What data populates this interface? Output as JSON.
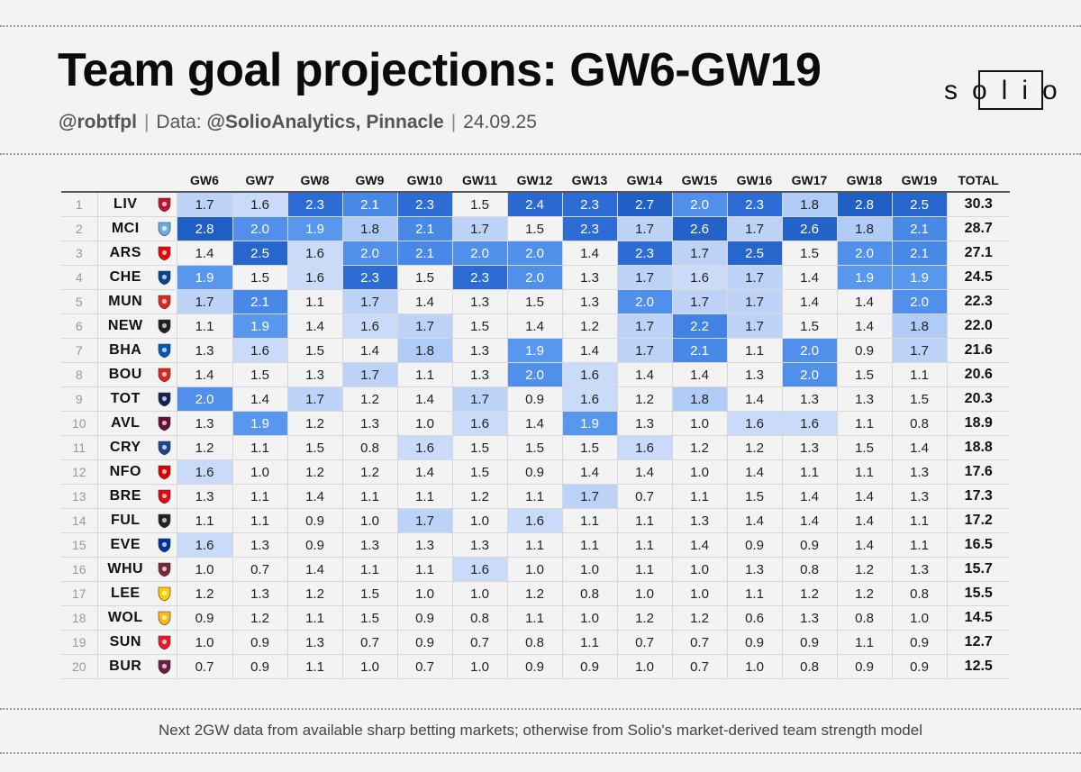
{
  "header": {
    "title": "Team goal projections: GW6-GW19",
    "author": "@robtfpl",
    "data_label": "Data:",
    "data_source": "@SolioAnalytics, Pinnacle",
    "date": "24.09.25",
    "logo_text": "solio"
  },
  "footnote": "Next 2GW data from available sharp betting markets; otherwise from Solio's market-derived team strength model",
  "colors": {
    "background": "#f3f3f3",
    "cell_base": "#f3f3f3",
    "scale_light": "#cfdff9",
    "scale_mid": "#5b9af0",
    "scale_dark": "#1f5ec4"
  },
  "chart_data": {
    "type": "table",
    "title": "Team goal projections: GW6-GW19",
    "columns": [
      "GW6",
      "GW7",
      "GW8",
      "GW9",
      "GW10",
      "GW11",
      "GW12",
      "GW13",
      "GW14",
      "GW15",
      "GW16",
      "GW17",
      "GW18",
      "GW19",
      "TOTAL"
    ],
    "rows": [
      {
        "rank": "1",
        "team": "LIV",
        "crest": "liverpool-crest-icon",
        "crest_color": "#c8102e",
        "values": [
          "1.7",
          "1.6",
          "2.3",
          "2.1",
          "2.3",
          "1.5",
          "2.4",
          "2.3",
          "2.7",
          "2.0",
          "2.3",
          "1.8",
          "2.8",
          "2.5"
        ],
        "total": "30.3"
      },
      {
        "rank": "2",
        "team": "MCI",
        "crest": "man-city-crest-icon",
        "crest_color": "#6cabdd",
        "values": [
          "2.8",
          "2.0",
          "1.9",
          "1.8",
          "2.1",
          "1.7",
          "1.5",
          "2.3",
          "1.7",
          "2.6",
          "1.7",
          "2.6",
          "1.8",
          "2.1"
        ],
        "total": "28.7"
      },
      {
        "rank": "3",
        "team": "ARS",
        "crest": "arsenal-crest-icon",
        "crest_color": "#ef0107",
        "values": [
          "1.4",
          "2.5",
          "1.6",
          "2.0",
          "2.1",
          "2.0",
          "2.0",
          "1.4",
          "2.3",
          "1.7",
          "2.5",
          "1.5",
          "2.0",
          "2.1"
        ],
        "total": "27.1"
      },
      {
        "rank": "4",
        "team": "CHE",
        "crest": "chelsea-crest-icon",
        "crest_color": "#034694",
        "values": [
          "1.9",
          "1.5",
          "1.6",
          "2.3",
          "1.5",
          "2.3",
          "2.0",
          "1.3",
          "1.7",
          "1.6",
          "1.7",
          "1.4",
          "1.9",
          "1.9"
        ],
        "total": "24.5"
      },
      {
        "rank": "5",
        "team": "MUN",
        "crest": "man-united-crest-icon",
        "crest_color": "#da291c",
        "values": [
          "1.7",
          "2.1",
          "1.1",
          "1.7",
          "1.4",
          "1.3",
          "1.5",
          "1.3",
          "2.0",
          "1.7",
          "1.7",
          "1.4",
          "1.4",
          "2.0"
        ],
        "total": "22.3"
      },
      {
        "rank": "6",
        "team": "NEW",
        "crest": "newcastle-crest-icon",
        "crest_color": "#241f20",
        "values": [
          "1.1",
          "1.9",
          "1.4",
          "1.6",
          "1.7",
          "1.5",
          "1.4",
          "1.2",
          "1.7",
          "2.2",
          "1.7",
          "1.5",
          "1.4",
          "1.8"
        ],
        "total": "22.0"
      },
      {
        "rank": "7",
        "team": "BHA",
        "crest": "brighton-crest-icon",
        "crest_color": "#0057b8",
        "values": [
          "1.3",
          "1.6",
          "1.5",
          "1.4",
          "1.8",
          "1.3",
          "1.9",
          "1.4",
          "1.7",
          "2.1",
          "1.1",
          "2.0",
          "0.9",
          "1.7"
        ],
        "total": "21.6"
      },
      {
        "rank": "8",
        "team": "BOU",
        "crest": "bournemouth-crest-icon",
        "crest_color": "#da291c",
        "values": [
          "1.4",
          "1.5",
          "1.3",
          "1.7",
          "1.1",
          "1.3",
          "2.0",
          "1.6",
          "1.4",
          "1.4",
          "1.3",
          "2.0",
          "1.5",
          "1.1"
        ],
        "total": "20.6"
      },
      {
        "rank": "9",
        "team": "TOT",
        "crest": "tottenham-crest-icon",
        "crest_color": "#132257",
        "values": [
          "2.0",
          "1.4",
          "1.7",
          "1.2",
          "1.4",
          "1.7",
          "0.9",
          "1.6",
          "1.2",
          "1.8",
          "1.4",
          "1.3",
          "1.3",
          "1.5"
        ],
        "total": "20.3"
      },
      {
        "rank": "10",
        "team": "AVL",
        "crest": "aston-villa-crest-icon",
        "crest_color": "#670e36",
        "values": [
          "1.3",
          "1.9",
          "1.2",
          "1.3",
          "1.0",
          "1.6",
          "1.4",
          "1.9",
          "1.3",
          "1.0",
          "1.6",
          "1.6",
          "1.1",
          "0.8"
        ],
        "total": "18.9"
      },
      {
        "rank": "11",
        "team": "CRY",
        "crest": "crystal-palace-crest-icon",
        "crest_color": "#1b458f",
        "values": [
          "1.2",
          "1.1",
          "1.5",
          "0.8",
          "1.6",
          "1.5",
          "1.5",
          "1.5",
          "1.6",
          "1.2",
          "1.2",
          "1.3",
          "1.5",
          "1.4"
        ],
        "total": "18.8"
      },
      {
        "rank": "12",
        "team": "NFO",
        "crest": "nottingham-forest-crest-icon",
        "crest_color": "#dd0000",
        "values": [
          "1.6",
          "1.0",
          "1.2",
          "1.2",
          "1.4",
          "1.5",
          "0.9",
          "1.4",
          "1.4",
          "1.0",
          "1.4",
          "1.1",
          "1.1",
          "1.3"
        ],
        "total": "17.6"
      },
      {
        "rank": "13",
        "team": "BRE",
        "crest": "brentford-crest-icon",
        "crest_color": "#e30613",
        "values": [
          "1.3",
          "1.1",
          "1.4",
          "1.1",
          "1.1",
          "1.2",
          "1.1",
          "1.7",
          "0.7",
          "1.1",
          "1.5",
          "1.4",
          "1.4",
          "1.3"
        ],
        "total": "17.3"
      },
      {
        "rank": "14",
        "team": "FUL",
        "crest": "fulham-crest-icon",
        "crest_color": "#222222",
        "values": [
          "1.1",
          "1.1",
          "0.9",
          "1.0",
          "1.7",
          "1.0",
          "1.6",
          "1.1",
          "1.1",
          "1.3",
          "1.4",
          "1.4",
          "1.4",
          "1.1"
        ],
        "total": "17.2"
      },
      {
        "rank": "15",
        "team": "EVE",
        "crest": "everton-crest-icon",
        "crest_color": "#003399",
        "values": [
          "1.6",
          "1.3",
          "0.9",
          "1.3",
          "1.3",
          "1.3",
          "1.1",
          "1.1",
          "1.1",
          "1.4",
          "0.9",
          "0.9",
          "1.4",
          "1.1"
        ],
        "total": "16.5"
      },
      {
        "rank": "16",
        "team": "WHU",
        "crest": "west-ham-crest-icon",
        "crest_color": "#7a263a",
        "values": [
          "1.0",
          "0.7",
          "1.4",
          "1.1",
          "1.1",
          "1.6",
          "1.0",
          "1.0",
          "1.1",
          "1.0",
          "1.3",
          "0.8",
          "1.2",
          "1.3"
        ],
        "total": "15.7"
      },
      {
        "rank": "17",
        "team": "LEE",
        "crest": "leeds-crest-icon",
        "crest_color": "#ffcd00",
        "values": [
          "1.2",
          "1.3",
          "1.2",
          "1.5",
          "1.0",
          "1.0",
          "1.2",
          "0.8",
          "1.0",
          "1.0",
          "1.1",
          "1.2",
          "1.2",
          "0.8"
        ],
        "total": "15.5"
      },
      {
        "rank": "18",
        "team": "WOL",
        "crest": "wolves-crest-icon",
        "crest_color": "#fdb913",
        "values": [
          "0.9",
          "1.2",
          "1.1",
          "1.5",
          "0.9",
          "0.8",
          "1.1",
          "1.0",
          "1.2",
          "1.2",
          "0.6",
          "1.3",
          "0.8",
          "1.0"
        ],
        "total": "14.5"
      },
      {
        "rank": "19",
        "team": "SUN",
        "crest": "sunderland-crest-icon",
        "crest_color": "#eb172b",
        "values": [
          "1.0",
          "0.9",
          "1.3",
          "0.7",
          "0.9",
          "0.7",
          "0.8",
          "1.1",
          "0.7",
          "0.7",
          "0.9",
          "0.9",
          "1.1",
          "0.9"
        ],
        "total": "12.7"
      },
      {
        "rank": "20",
        "team": "BUR",
        "crest": "burnley-crest-icon",
        "crest_color": "#6c1d45",
        "values": [
          "0.7",
          "0.9",
          "1.1",
          "1.0",
          "0.7",
          "1.0",
          "0.9",
          "0.9",
          "1.0",
          "0.7",
          "1.0",
          "0.8",
          "0.9",
          "0.9"
        ],
        "total": "12.5"
      }
    ]
  }
}
